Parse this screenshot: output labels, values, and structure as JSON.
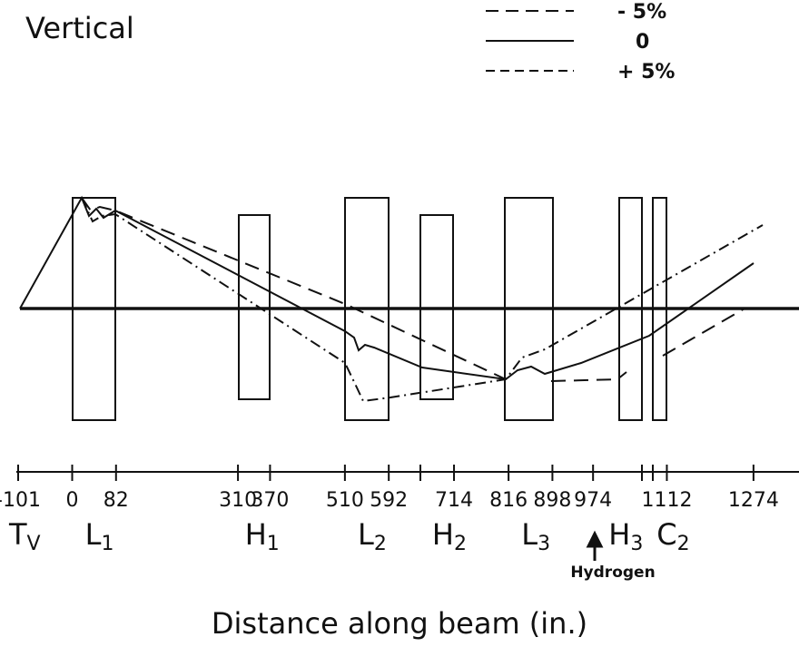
{
  "title": "Vertical",
  "legend": [
    "- 5%",
    "0",
    "+ 5%"
  ],
  "axis": {
    "ticks": [
      -101,
      0,
      82,
      310,
      370,
      510,
      592,
      714,
      816,
      898,
      974,
      1112,
      1274
    ],
    "label": "Distance  along  beam (in.)"
  },
  "elements": [
    {
      "name": "T",
      "sub": "V",
      "at": -101
    },
    {
      "name": "L",
      "sub": "1",
      "at": 41
    },
    {
      "name": "H",
      "sub": "1",
      "at": 340
    },
    {
      "name": "L",
      "sub": "2",
      "at": 551
    },
    {
      "name": "H",
      "sub": "2",
      "at": 690
    },
    {
      "name": "L",
      "sub": "3",
      "at": 857
    },
    {
      "name": "H",
      "sub": "3",
      "at": 1020
    },
    {
      "name": "C",
      "sub": "2",
      "at": 1110
    }
  ],
  "annotation": "Hydrogen"
}
